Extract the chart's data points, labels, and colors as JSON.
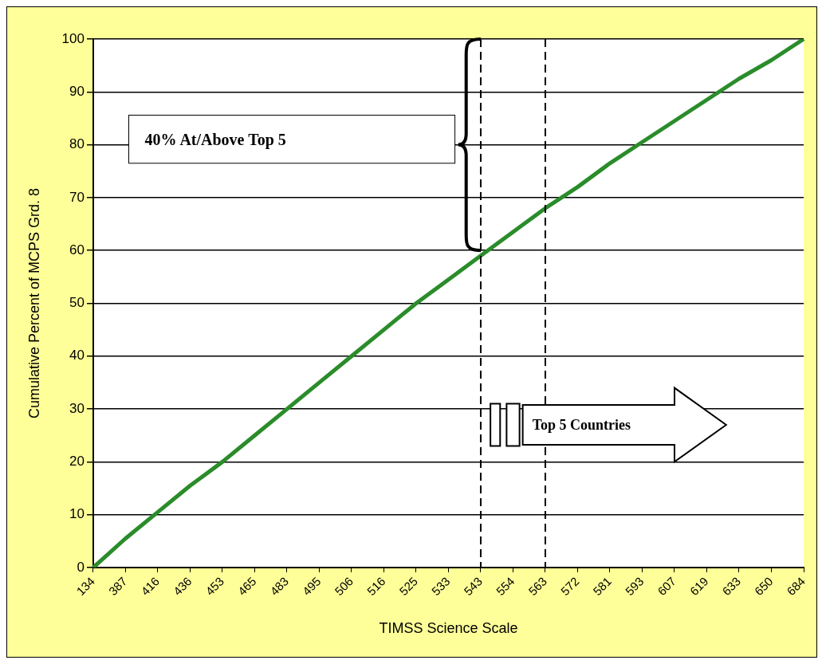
{
  "chart_data": {
    "type": "line",
    "xlabel": "TIMSS Science Scale",
    "ylabel": "Cumulative Percent of MCPS Grd. 8",
    "categories": [
      "134",
      "387",
      "416",
      "436",
      "453",
      "465",
      "483",
      "495",
      "506",
      "516",
      "525",
      "533",
      "543",
      "554",
      "563",
      "572",
      "581",
      "593",
      "607",
      "619",
      "633",
      "650",
      "684"
    ],
    "series": [
      {
        "color": "#2a8c2a",
        "values": [
          0,
          5.5,
          10.5,
          15.5,
          20,
          25,
          30,
          35,
          40,
          45,
          50,
          54.5,
          59,
          63.5,
          68,
          72,
          76.5,
          80.5,
          84.5,
          88.5,
          92.5,
          96,
          100
        ]
      }
    ],
    "ylim": [
      0,
      100
    ],
    "yticks": [
      0,
      10,
      20,
      30,
      40,
      50,
      60,
      70,
      80,
      90,
      100
    ],
    "grid": "y",
    "legend": false,
    "marker": "none",
    "line_style": "solid",
    "ref_lines": [
      {
        "axis": "x",
        "value": "543",
        "color": "#000000",
        "line_style": "dashed"
      },
      {
        "axis": "x",
        "value": "563",
        "color": "#000000",
        "line_style": "dashed"
      }
    ],
    "annotations": [
      "40% At/Above Top 5",
      "Top 5 Countries"
    ]
  }
}
